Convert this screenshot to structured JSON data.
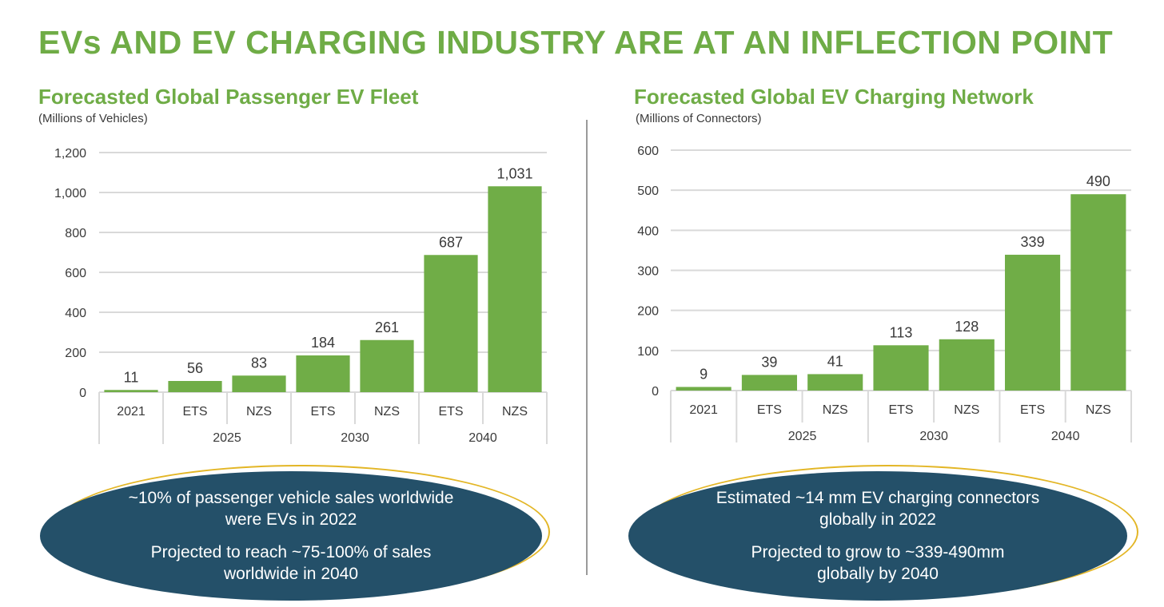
{
  "title": "EVs AND EV CHARGING INDUSTRY ARE AT AN INFLECTION POINT",
  "colors": {
    "bar": "#70ad47",
    "title": "#6fac46",
    "ellipse": "#245069",
    "ellipse_outline": "#e3b626",
    "grid": "#d9d9d9"
  },
  "chart_data": [
    {
      "type": "bar",
      "title": "Forecasted Global Passenger EV Fleet",
      "ylabel": "(Millions of Vehicles)",
      "ylim": [
        0,
        1200
      ],
      "yticks": [
        0,
        200,
        400,
        600,
        800,
        1000,
        1200
      ],
      "ytick_labels": [
        "0",
        "200",
        "400",
        "600",
        "800",
        "1,000",
        "1,200"
      ],
      "categories": [
        "2021",
        "ETS",
        "NZS",
        "ETS",
        "NZS",
        "ETS",
        "NZS"
      ],
      "groups": [
        {
          "label": "2025",
          "start": 1,
          "end": 2
        },
        {
          "label": "2030",
          "start": 3,
          "end": 4
        },
        {
          "label": "2040",
          "start": 5,
          "end": 6
        }
      ],
      "values": [
        11,
        56,
        83,
        184,
        261,
        687,
        1031
      ],
      "value_labels": [
        "11",
        "56",
        "83",
        "184",
        "261",
        "687",
        "1,031"
      ],
      "grid": true
    },
    {
      "type": "bar",
      "title": "Forecasted Global EV Charging Network",
      "ylabel": "(Millions of Connectors)",
      "ylim": [
        0,
        600
      ],
      "yticks": [
        0,
        100,
        200,
        300,
        400,
        500,
        600
      ],
      "ytick_labels": [
        "0",
        "100",
        "200",
        "300",
        "400",
        "500",
        "600"
      ],
      "categories": [
        "2021",
        "ETS",
        "NZS",
        "ETS",
        "NZS",
        "ETS",
        "NZS"
      ],
      "groups": [
        {
          "label": "2025",
          "start": 1,
          "end": 2
        },
        {
          "label": "2030",
          "start": 3,
          "end": 4
        },
        {
          "label": "2040",
          "start": 5,
          "end": 6
        }
      ],
      "values": [
        9,
        39,
        41,
        113,
        128,
        339,
        490
      ],
      "value_labels": [
        "9",
        "39",
        "41",
        "113",
        "128",
        "339",
        "490"
      ],
      "grid": true
    }
  ],
  "callouts": [
    {
      "line1": "~10% of passenger vehicle sales worldwide",
      "line2": "were EVs in 2022",
      "line3": "Projected to reach ~75-100% of sales",
      "line4": "worldwide in 2040"
    },
    {
      "line1": "Estimated ~14 mm EV charging connectors",
      "line2": "globally in 2022",
      "line3": "Projected to grow to ~339-490mm",
      "line4": "globally by 2040"
    }
  ]
}
